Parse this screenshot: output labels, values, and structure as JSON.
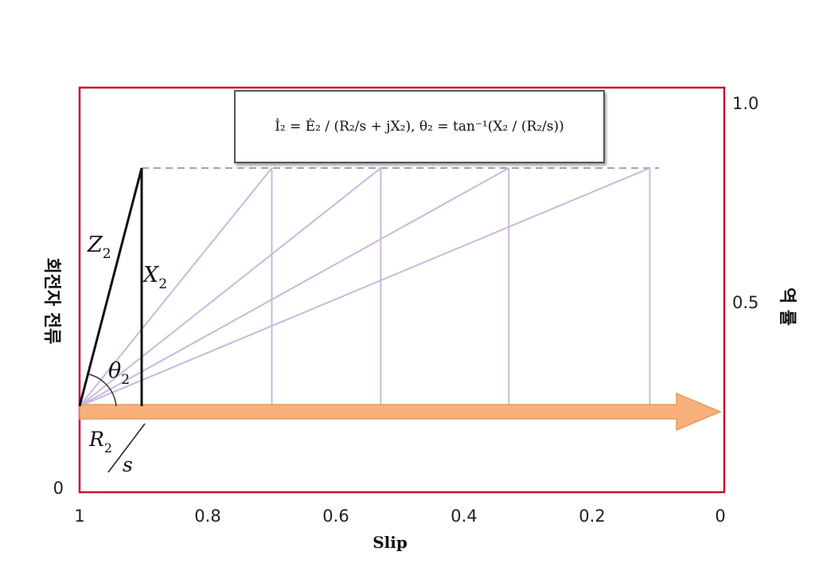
{
  "formula": {
    "text": "İ₂ = Ė₂ / (R₂/s + jX₂),  θ₂ = tan⁻¹(X₂ / (R₂/s))"
  },
  "labels": {
    "z2": "Z",
    "z2_sub": "2",
    "x2": "X",
    "x2_sub": "2",
    "theta": "θ",
    "theta_sub": "2",
    "r2": "R",
    "r2_sub": "2",
    "s": "s"
  },
  "axes": {
    "left_title": "회전자 전류",
    "right_title": "역 률",
    "x_title": "Slip",
    "left_ticks": [
      {
        "label": "0",
        "value": 0
      }
    ],
    "right_ticks": [
      {
        "label": "1.0",
        "value": 1.0
      },
      {
        "label": "0.5",
        "value": 0.5
      }
    ],
    "x_ticks": [
      {
        "label": "1",
        "value": 1.0
      },
      {
        "label": "0.8",
        "value": 0.8
      },
      {
        "label": "0.6",
        "value": 0.6
      },
      {
        "label": "0.4",
        "value": 0.4
      },
      {
        "label": "0.2",
        "value": 0.2
      },
      {
        "label": "0",
        "value": 0.0
      }
    ]
  },
  "colors": {
    "frame": "#c8102e",
    "arrow": "#f7b07a",
    "arrow_edge": "#e89a60",
    "fan_lines": "#c9b8dd",
    "triangle": "#111111",
    "dashed": "#9a9a9a"
  },
  "diagram": {
    "arrow_slip_end": 0.0,
    "fan_slips": [
      0.9,
      0.7,
      0.53,
      0.33,
      0.11
    ]
  }
}
